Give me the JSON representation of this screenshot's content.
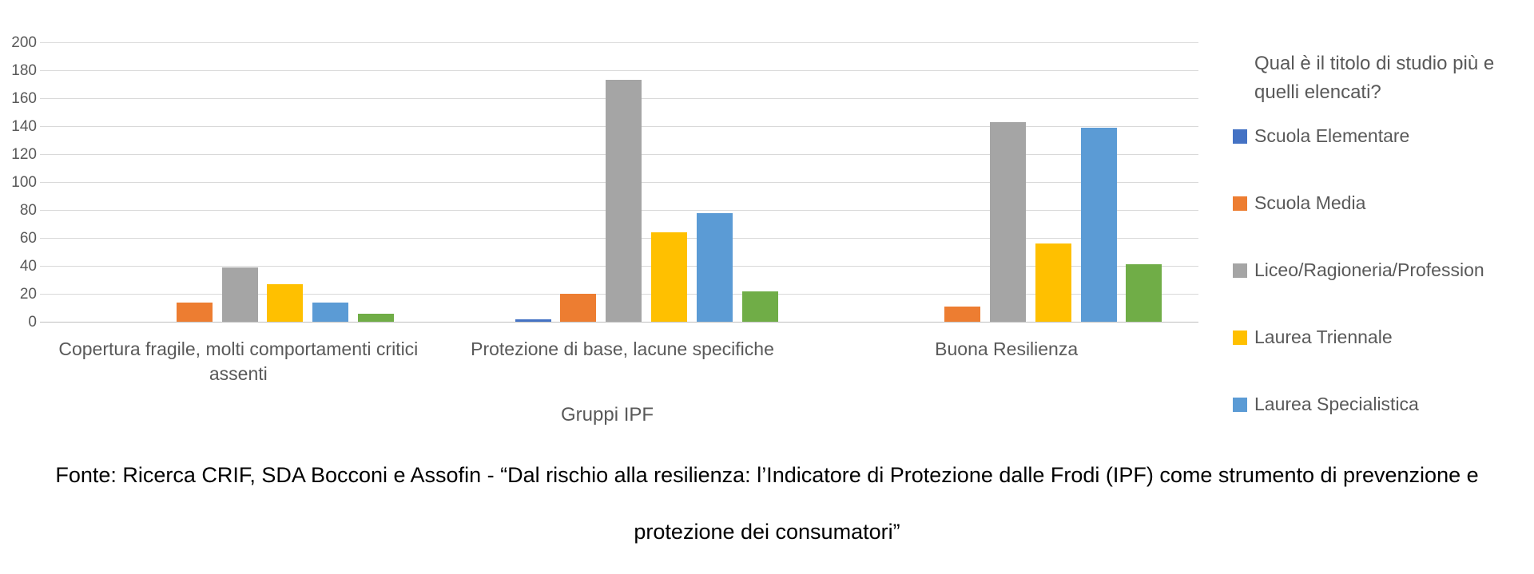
{
  "chart_data": {
    "type": "bar",
    "title": "",
    "categories": [
      "Copertura fragile, molti comportamenti critici assenti",
      "Protezione di base, lacune specifiche",
      "Buona Resilienza"
    ],
    "series": [
      {
        "name": "Scuola Elementare",
        "color": "#4472C4",
        "values": [
          0,
          2,
          0
        ],
        "in_legend": true
      },
      {
        "name": "Scuola Media",
        "color": "#ED7D31",
        "values": [
          14,
          20,
          11
        ],
        "in_legend": true
      },
      {
        "name": "Liceo/Ragioneria/Profession",
        "color": "#A5A5A5",
        "values": [
          39,
          173,
          143
        ],
        "in_legend": true
      },
      {
        "name": "Laurea Triennale",
        "color": "#FFC000",
        "values": [
          27,
          64,
          56
        ],
        "in_legend": true
      },
      {
        "name": "Laurea Specialistica",
        "color": "#5B9BD5",
        "values": [
          14,
          78,
          139
        ],
        "in_legend": true
      },
      {
        "name": "",
        "color": "#70AD47",
        "values": [
          6,
          22,
          41
        ],
        "in_legend": false
      }
    ],
    "xlabel": "Gruppi IPF",
    "ylabel": "",
    "ylim": [
      0,
      200
    ],
    "ytick_step": 20,
    "yticks": [
      0,
      20,
      40,
      60,
      80,
      100,
      120,
      140,
      160,
      180,
      200
    ],
    "grid": true,
    "legend_position": "right",
    "legend_title_lines": [
      "Qual è il titolo di studio più e",
      "quelli elencati?"
    ]
  },
  "footer": {
    "line1": "Fonte: Ricerca CRIF, SDA Bocconi e Assofin - “Dal rischio alla resilienza: l’Indicatore di Protezione dalle Frodi (IPF) come strumento di prevenzione e",
    "line2": "protezione dei consumatori”"
  },
  "colors": {
    "axis_text": "#595959",
    "gridline": "#D9D9D9",
    "axis_line": "#BFBFBF",
    "footer_text": "#000000",
    "background": "#FFFFFF"
  }
}
